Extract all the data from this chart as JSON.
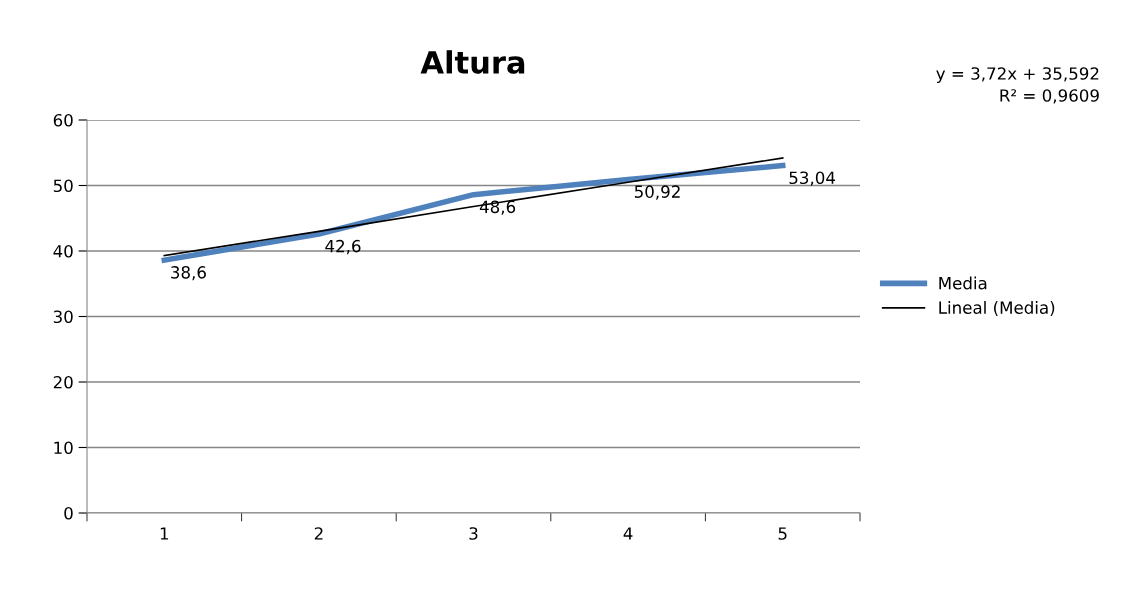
{
  "chart_data": {
    "type": "line",
    "title": "Altura",
    "categories": [
      "1",
      "2",
      "3",
      "4",
      "5"
    ],
    "series": [
      {
        "name": "Media",
        "color": "#4f81bd",
        "values": [
          38.6,
          42.6,
          48.6,
          50.92,
          53.04
        ],
        "value_labels": [
          "38,6",
          "42,6",
          "48,6",
          "50,92",
          "53,04"
        ]
      },
      {
        "name": "Lineal (Media)",
        "color": "#000000",
        "values": [
          39.3,
          43.0,
          46.8,
          50.5,
          54.2
        ]
      }
    ],
    "ylim": [
      0,
      60
    ],
    "yticks": [
      0,
      10,
      20,
      30,
      40,
      50,
      60
    ],
    "grid": "y",
    "legend": "right",
    "marker": "none",
    "line_style": "solid",
    "annotations": [
      "y = 3,72x + 35,592",
      "R² = 0,9609"
    ]
  }
}
